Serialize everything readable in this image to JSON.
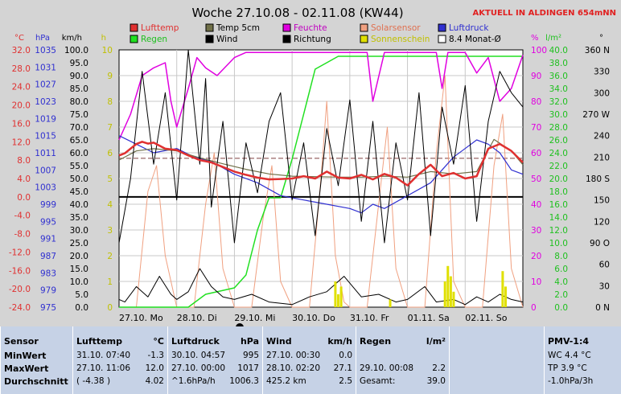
{
  "title": "Woche 27.10.08 - 02.11.08 (KW44)",
  "banner": "AKTUELL IN ALDINGEN 654mNN",
  "colors": {
    "lufttemp": "#e03030",
    "temp5cm": "#707048",
    "feuchte": "#e000e0",
    "solarsensor": "#f0a080",
    "luftdruck": "#3030d0",
    "regen": "#20e020",
    "wind": "#000000",
    "richtung": "#000000",
    "sonnenschein": "#e0e000",
    "monat": "#000000"
  },
  "legend": [
    {
      "label": "Lufttemp",
      "key": "lufttemp",
      "style": "box"
    },
    {
      "label": "Temp 5cm",
      "key": "temp5cm",
      "style": "box"
    },
    {
      "label": "Feuchte",
      "key": "feuchte",
      "style": "box"
    },
    {
      "label": "Solarsensor",
      "key": "solarsensor",
      "style": "box"
    },
    {
      "label": "Luftdruck",
      "key": "luftdruck",
      "style": "box"
    },
    {
      "label": "Regen",
      "key": "regen",
      "style": "box"
    },
    {
      "label": "Wind",
      "key": "wind",
      "style": "box"
    },
    {
      "label": "Richtung",
      "key": "richtung",
      "style": "box"
    },
    {
      "label": "Sonnenschein",
      "key": "sonnenschein",
      "style": "box"
    },
    {
      "label": "8.4 Monat-Ø",
      "key": "monat",
      "style": "outline"
    }
  ],
  "axes": [
    {
      "unit": "°C",
      "color": "#e03030",
      "ticks": [
        "32.0",
        "28.0",
        "24.0",
        "20.0",
        "16.0",
        "12.0",
        "8.0",
        "4.0",
        "0.0",
        "-4.0",
        "-8.0",
        "-12.0",
        "-16.0",
        "-20.0",
        "-24.0"
      ]
    },
    {
      "unit": "hPa",
      "color": "#3030d0",
      "ticks": [
        "1035",
        "1031",
        "1027",
        "1023",
        "1019",
        "1015",
        "1011",
        "1007",
        "1003",
        "999",
        "995",
        "991",
        "987",
        "983",
        "979",
        "975"
      ]
    },
    {
      "unit": "km/h",
      "color": "#000000",
      "ticks": [
        "100.0",
        "95.0",
        "90.0",
        "85.0",
        "80.0",
        "75.0",
        "70.0",
        "65.0",
        "60.0",
        "55.0",
        "50.0",
        "45.0",
        "40.0",
        "35.0",
        "30.0",
        "25.0",
        "20.0",
        "15.0",
        "10.0",
        "5.0",
        "0.0"
      ]
    },
    {
      "unit": "h",
      "color": "#c0c000",
      "ticks": [
        "10",
        "9",
        "8",
        "7",
        "6",
        "5",
        "4",
        "3",
        "2",
        "1",
        "0"
      ]
    },
    {
      "unit": "%",
      "color": "#e000e0",
      "ticks": [
        "100",
        "90",
        "80",
        "70",
        "60",
        "50",
        "40",
        "30",
        "20",
        "10",
        "0"
      ]
    },
    {
      "unit": "l/m²",
      "color": "#20c020",
      "ticks": [
        "40.0",
        "38.0",
        "36.0",
        "34.0",
        "32.0",
        "30.0",
        "28.0",
        "26.0",
        "24.0",
        "22.0",
        "20.0",
        "18.0",
        "16.0",
        "14.0",
        "12.0",
        "10.0",
        "8.0",
        "6.0",
        "4.0",
        "2.0",
        "0.0"
      ]
    },
    {
      "unit": "°",
      "color": "#000000",
      "ticks": [
        "360 N",
        "330",
        "300",
        "270 W",
        "240",
        "210",
        "180 S",
        "150",
        "120",
        "90 O",
        "60",
        "30",
        "0 N"
      ]
    }
  ],
  "xlabels": [
    "27.10. Mo",
    "28.10. Di",
    "29.10. Mi",
    "30.10. Do",
    "31.10. Fr",
    "01.11. Sa",
    "02.11. So"
  ],
  "chart_data": {
    "type": "line",
    "x_unit": "day index (0 = 27.10. 00:00)",
    "xlim": [
      0,
      7
    ],
    "month_avg_temp": 8.4,
    "series": [
      {
        "name": "Lufttemp",
        "unit": "°C",
        "x": [
          0,
          0.1,
          0.2,
          0.3,
          0.4,
          0.5,
          0.6,
          0.8,
          1.0,
          1.2,
          1.4,
          1.6,
          1.8,
          2.0,
          2.2,
          2.4,
          2.6,
          2.8,
          3.0,
          3.2,
          3.4,
          3.6,
          3.8,
          4.0,
          4.2,
          4.4,
          4.6,
          4.8,
          5.0,
          5.2,
          5.4,
          5.6,
          5.8,
          6.0,
          6.2,
          6.4,
          6.6,
          6.8,
          7.0
        ],
        "y": [
          9,
          9.5,
          10.5,
          11.5,
          12,
          11.6,
          11.8,
          10.5,
          10.2,
          9,
          8,
          7.5,
          6.5,
          5.5,
          4.8,
          4.2,
          3.8,
          3.9,
          4.0,
          4.5,
          4.0,
          5.5,
          4.2,
          4.0,
          4.8,
          3.8,
          5.0,
          4.2,
          2.5,
          5.0,
          7.0,
          4.5,
          5.2,
          4.0,
          4.5,
          10.5,
          11.5,
          10.0,
          7.5
        ]
      },
      {
        "name": "Temp 5cm",
        "unit": "°C",
        "x": [
          0,
          0.3,
          0.6,
          1.0,
          1.4,
          1.8,
          2.2,
          2.6,
          3.0,
          3.4,
          3.8,
          4.2,
          4.6,
          5.0,
          5.4,
          5.8,
          6.2,
          6.5,
          6.8,
          7.0
        ],
        "y": [
          8,
          10,
          10.5,
          10,
          8.5,
          7.2,
          6,
          5,
          4.5,
          4.4,
          4.3,
          4.3,
          4.5,
          4.3,
          5.5,
          5.0,
          5.5,
          12.5,
          10.0,
          7.0
        ]
      },
      {
        "name": "Feuchte",
        "unit": "%",
        "x": [
          0,
          0.2,
          0.4,
          0.6,
          0.8,
          0.9,
          1.0,
          1.2,
          1.35,
          1.5,
          1.7,
          2.0,
          2.2,
          2.5,
          2.8,
          3.0,
          3.2,
          3.5,
          4.0,
          4.3,
          4.4,
          4.6,
          5.0,
          5.3,
          5.5,
          5.6,
          5.7,
          6.0,
          6.2,
          6.4,
          6.6,
          6.8,
          7.0
        ],
        "y": [
          65,
          75,
          90,
          93,
          95,
          80,
          70,
          85,
          97,
          93,
          90,
          97,
          99,
          99,
          99,
          99,
          99,
          99,
          99,
          99,
          80,
          99,
          99,
          99,
          99,
          85,
          99,
          99,
          91,
          97,
          80,
          85,
          98
        ]
      },
      {
        "name": "Solarsensor",
        "unit": "%",
        "x": [
          0,
          0.3,
          0.5,
          0.65,
          0.8,
          1.0,
          1.3,
          1.5,
          1.65,
          1.8,
          2.0,
          2.3,
          2.5,
          2.65,
          2.8,
          3.0,
          3.3,
          3.5,
          3.6,
          3.75,
          3.9,
          4.0,
          4.3,
          4.5,
          4.65,
          4.8,
          5.0,
          5.3,
          5.5,
          5.65,
          5.8,
          6.0,
          6.3,
          6.5,
          6.65,
          6.8,
          7.0
        ],
        "y": [
          0,
          0,
          45,
          55,
          20,
          0,
          0,
          40,
          60,
          15,
          0,
          0,
          35,
          55,
          10,
          0,
          0,
          50,
          80,
          20,
          2,
          0,
          0,
          40,
          70,
          15,
          0,
          0,
          60,
          90,
          10,
          0,
          0,
          55,
          75,
          15,
          0
        ]
      },
      {
        "name": "Luftdruck",
        "unit": "hPa",
        "x": [
          0,
          0.3,
          0.6,
          1.0,
          1.3,
          1.6,
          2.0,
          2.4,
          2.8,
          3.2,
          3.6,
          4.0,
          4.2,
          4.4,
          4.6,
          5.0,
          5.4,
          5.8,
          6.0,
          6.2,
          6.4,
          6.6,
          6.8,
          7.0
        ],
        "y": [
          1015,
          1013,
          1011,
          1012,
          1010,
          1009,
          1006,
          1004,
          1001,
          1000,
          999,
          998,
          997,
          999,
          998,
          1001,
          1004,
          1010,
          1012,
          1014,
          1013,
          1011,
          1007,
          1006
        ]
      },
      {
        "name": "Regen",
        "unit": "l/m²",
        "x": [
          0,
          0.6,
          0.8,
          1.0,
          1.2,
          1.5,
          2.0,
          2.2,
          2.4,
          2.6,
          2.8,
          3.0,
          3.2,
          3.4,
          3.6,
          3.8,
          4.0,
          4.5,
          5.0,
          5.5,
          6.0,
          6.5,
          7.0
        ],
        "y": [
          0,
          0,
          0,
          0,
          0,
          2,
          3,
          5,
          12,
          17,
          17,
          23,
          30,
          37,
          38,
          39,
          39,
          39,
          39,
          39,
          39,
          39,
          39
        ]
      },
      {
        "name": "Wind",
        "unit": "km/h",
        "x": [
          0,
          0.1,
          0.3,
          0.5,
          0.7,
          0.9,
          1.0,
          1.2,
          1.4,
          1.6,
          1.8,
          2.0,
          2.3,
          2.6,
          3.0,
          3.3,
          3.6,
          3.9,
          4.2,
          4.5,
          4.8,
          5.0,
          5.3,
          5.5,
          5.8,
          6.0,
          6.2,
          6.4,
          6.6,
          6.8,
          7.0
        ],
        "y": [
          3,
          2,
          8,
          4,
          12,
          5,
          3,
          6,
          15,
          8,
          4,
          3,
          5,
          2,
          1,
          4,
          6,
          12,
          4,
          5,
          2,
          3,
          8,
          2,
          3,
          1,
          4,
          2,
          5,
          3,
          2
        ]
      },
      {
        "name": "Richtung",
        "unit": "°",
        "x": [
          0,
          0.2,
          0.4,
          0.6,
          0.8,
          1.0,
          1.2,
          1.4,
          1.5,
          1.6,
          1.8,
          2.0,
          2.2,
          2.4,
          2.6,
          2.8,
          3.0,
          3.2,
          3.4,
          3.6,
          3.8,
          4.0,
          4.2,
          4.4,
          4.6,
          4.8,
          5.0,
          5.2,
          5.4,
          5.6,
          5.8,
          6.0,
          6.2,
          6.4,
          6.6,
          6.8,
          7.0
        ],
        "y": [
          90,
          180,
          330,
          200,
          300,
          150,
          360,
          200,
          320,
          140,
          260,
          90,
          230,
          160,
          260,
          300,
          150,
          230,
          100,
          250,
          170,
          290,
          120,
          260,
          90,
          230,
          150,
          300,
          100,
          280,
          200,
          310,
          120,
          260,
          330,
          300,
          280
        ]
      },
      {
        "name": "Sonnenschein",
        "unit": "h",
        "x": [
          3.75,
          3.8,
          3.85,
          4.7,
          5.65,
          5.7,
          5.75,
          5.8,
          6.65,
          6.7
        ],
        "y": [
          1.0,
          0.5,
          0.8,
          0.3,
          1.0,
          1.6,
          1.2,
          0.6,
          1.4,
          0.8
        ]
      }
    ]
  },
  "stats": {
    "sensor": {
      "title": "Sensor",
      "rows": [
        "MinWert",
        "MaxWert",
        "Durchschnitt"
      ]
    },
    "lufttemp": {
      "title": "Lufttemp",
      "unit": "°C",
      "rows": [
        [
          "31.10.  07:40",
          "-1.3"
        ],
        [
          "27.10.  11:06",
          "12.0"
        ],
        [
          "( -4.38 )",
          "4.02"
        ]
      ]
    },
    "luftdruck": {
      "title": "Luftdruck",
      "unit": "hPa",
      "rows": [
        [
          "30.10.  04:57",
          "995"
        ],
        [
          "27.10.  00:00",
          "1017"
        ],
        [
          "^1.6hPa/h",
          "1006.3"
        ]
      ]
    },
    "wind": {
      "title": "Wind",
      "unit": "km/h",
      "rows": [
        [
          "27.10.  00:30",
          "0.0"
        ],
        [
          "28.10.  02:20",
          "27.1"
        ],
        [
          "425.2 km",
          "2.5"
        ]
      ]
    },
    "regen": {
      "title": "Regen",
      "unit": "l/m²",
      "rows": [
        [
          "",
          ""
        ],
        [
          "29.10.  00:08",
          "2.2"
        ],
        [
          "Gesamt:",
          "39.0"
        ]
      ]
    },
    "pmv": {
      "title": "PMV-1:4",
      "rows": [
        "WC 4.4 °C",
        "TP 3.9 °C",
        "-1.0hPa/3h"
      ]
    }
  }
}
